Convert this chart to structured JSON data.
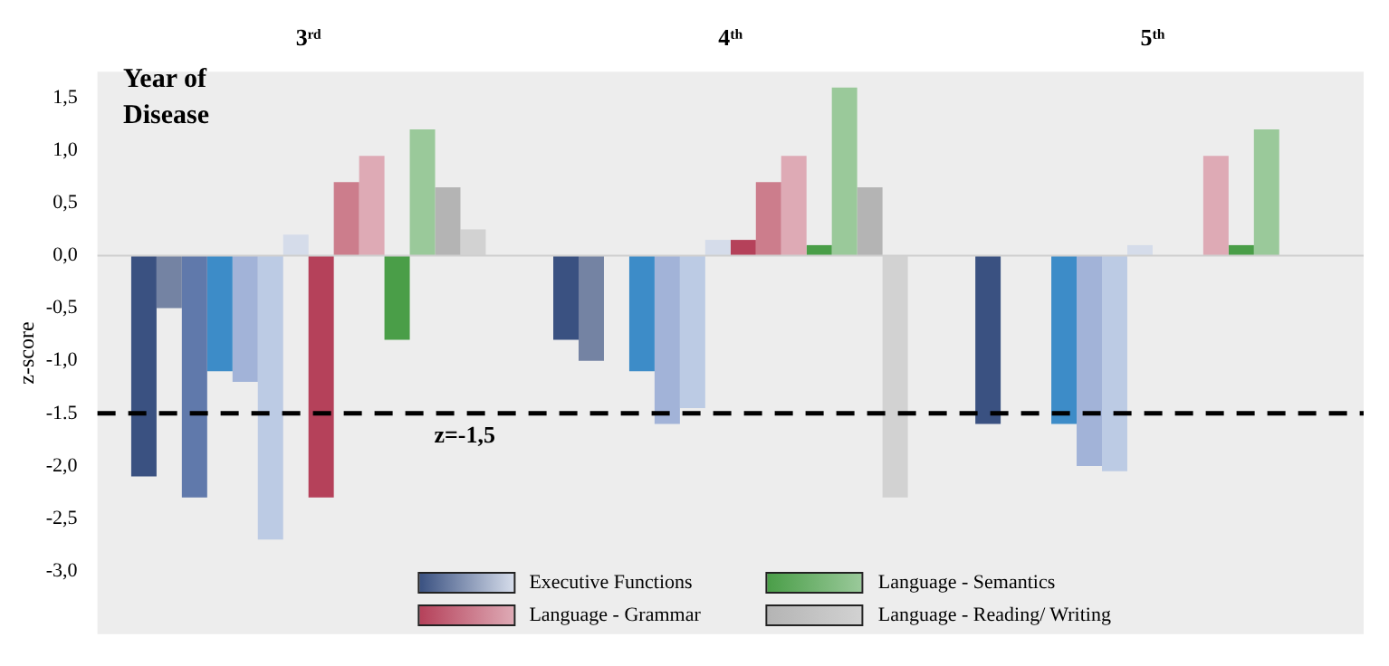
{
  "chart_data": {
    "type": "bar",
    "xlabel": "Year of Disease",
    "ylabel": "z-score",
    "categories": [
      "3ʳᵈ",
      "4ᵗʰ",
      "5ᵗʰ"
    ],
    "series": [
      {
        "name": "Executive Functions",
        "color": "#3a5181",
        "values": [
          -2.1,
          -0.8,
          -1.6
        ]
      },
      {
        "color": "#7483a3",
        "values": [
          -0.5,
          -1.0,
          null
        ]
      },
      {
        "color": "#6079ab",
        "values": [
          -2.3,
          null,
          null
        ]
      },
      {
        "color": "#3d8cc8",
        "values": [
          -1.1,
          -1.1,
          -1.6
        ]
      },
      {
        "color": "#a2b3d8",
        "values": [
          -1.2,
          -1.6,
          -2.0
        ]
      },
      {
        "color": "#bccbe4",
        "values": [
          -2.7,
          -1.45,
          -2.05
        ]
      },
      {
        "color": "#d5dcea",
        "values": [
          0.2,
          0.15,
          0.1
        ]
      },
      {
        "name": "Language - Grammar",
        "color": "#b5415a",
        "values": [
          -2.3,
          0.15,
          null
        ]
      },
      {
        "color": "#cc7d8c",
        "values": [
          0.7,
          0.7,
          null
        ]
      },
      {
        "color": "#deaab5",
        "values": [
          0.95,
          0.95,
          0.95
        ]
      },
      {
        "name": "Language - Semantics",
        "color": "#4a9e48",
        "values": [
          -0.8,
          0.1,
          0.1
        ]
      },
      {
        "color": "#9ac99a",
        "values": [
          1.2,
          1.6,
          1.2
        ]
      },
      {
        "name": "Language - Reading/ Writing",
        "color": "#b4b4b4",
        "values": [
          0.65,
          0.65,
          null
        ]
      },
      {
        "color": "#d2d2d2",
        "values": [
          0.25,
          -2.3,
          null
        ]
      }
    ],
    "ylim": [
      -3.6,
      1.75
    ],
    "yticks": [
      {
        "value": 1.5,
        "label": "1,5"
      },
      {
        "value": 1.0,
        "label": "1,0"
      },
      {
        "value": 0.5,
        "label": "0,5"
      },
      {
        "value": 0,
        "label": "0,0"
      },
      {
        "value": -0.5,
        "label": "-0,5"
      },
      {
        "value": -1.0,
        "label": "-1,0"
      },
      {
        "value": -1.5,
        "label": "-1.5"
      },
      {
        "value": -2.0,
        "label": "-2,0"
      },
      {
        "value": -2.5,
        "label": "-2,5"
      },
      {
        "value": -3.0,
        "label": "-3,0"
      }
    ],
    "ref_lines": [
      {
        "axis": "y",
        "value": -1.5,
        "label": "z=-1,5",
        "color": "#000000",
        "line_style": "dashed"
      }
    ],
    "grid": false,
    "legend": "bottom"
  }
}
